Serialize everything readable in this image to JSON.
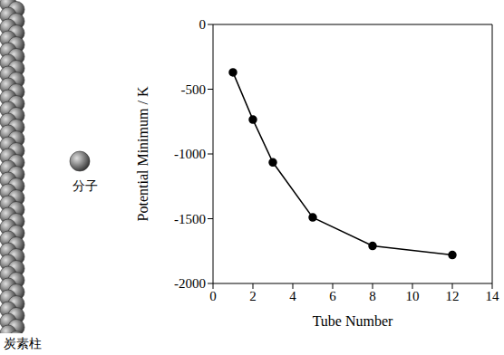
{
  "chart_data": {
    "type": "line",
    "x_label": "Tube Number",
    "y_label": "Potential Minimum / K",
    "x": [
      1,
      2,
      3,
      5,
      8,
      12
    ],
    "values": [
      -370,
      -735,
      -1065,
      -1490,
      -1710,
      -1780
    ],
    "color": "#000000",
    "marker": "circle",
    "line_style": "solid",
    "xlim": [
      0,
      14
    ],
    "xticks": [
      0,
      2,
      4,
      6,
      8,
      10,
      12,
      14
    ],
    "ylim": [
      -2000,
      0
    ],
    "yticks": [
      -2000,
      -1500,
      -1000,
      -500,
      0
    ],
    "grid": false
  },
  "illustration": {
    "molecule_label": "分子",
    "pillar_label": "炭素柱"
  }
}
